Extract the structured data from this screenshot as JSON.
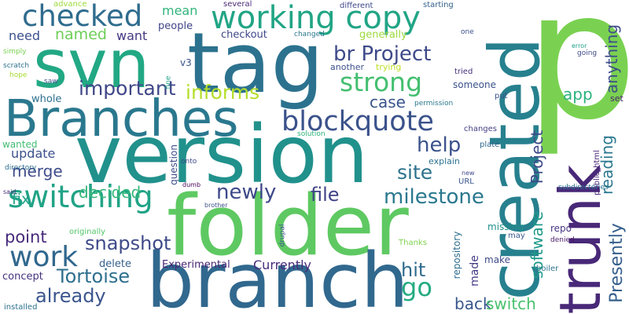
{
  "word_cloud": {
    "words": [
      {
        "text": "p",
        "color": "#7ad151"
      },
      {
        "text": "tag",
        "color": "#2c728e"
      },
      {
        "text": "svn",
        "color": "#22a884"
      },
      {
        "text": "version",
        "color": "#21918c"
      },
      {
        "text": "folder",
        "color": "#5ec962"
      },
      {
        "text": "branch",
        "color": "#31688e"
      },
      {
        "text": "created",
        "color": "#27808e"
      },
      {
        "text": "trunk",
        "color": "#482878"
      },
      {
        "text": "Branches",
        "color": "#2a788e"
      },
      {
        "text": "working copy",
        "color": "#21a585"
      },
      {
        "text": "checked",
        "color": "#2f6c8e"
      },
      {
        "text": "blockquote",
        "color": "#3b528b"
      },
      {
        "text": "strong",
        "color": "#44bf70"
      },
      {
        "text": "br Project",
        "color": "#3e4a89"
      },
      {
        "text": "switching",
        "color": "#20a386"
      },
      {
        "text": "work",
        "color": "#31688e"
      },
      {
        "text": "newly",
        "color": "#3e4989"
      },
      {
        "text": "milestone",
        "color": "#2a788e"
      },
      {
        "text": "important",
        "color": "#3f4788"
      },
      {
        "text": "informs",
        "color": "#b5de2b"
      },
      {
        "text": "help",
        "color": "#3b528b"
      },
      {
        "text": "site",
        "color": "#2c728e"
      },
      {
        "text": "file",
        "color": "#404387"
      },
      {
        "text": "merge",
        "color": "#3e4c8a"
      },
      {
        "text": "fix",
        "color": "#1fa187"
      },
      {
        "text": "decided",
        "color": "#35b779"
      },
      {
        "text": "snapshot",
        "color": "#3e4a89"
      },
      {
        "text": "point",
        "color": "#472a7a"
      },
      {
        "text": "Tortoise",
        "color": "#2e6f8e"
      },
      {
        "text": "already",
        "color": "#3a548c"
      },
      {
        "text": "hit",
        "color": "#2f6b8e"
      },
      {
        "text": "go",
        "color": "#25ab82"
      },
      {
        "text": "Currently",
        "color": "#472c7a"
      },
      {
        "text": "back",
        "color": "#39568c"
      },
      {
        "text": "switch",
        "color": "#4ac16d"
      },
      {
        "text": "software",
        "color": "#1f9a8a"
      },
      {
        "text": "Presently",
        "color": "#355f8d"
      },
      {
        "text": "reading",
        "color": "#2a778e"
      },
      {
        "text": "anything",
        "color": "#3d4e8a"
      },
      {
        "text": "app",
        "color": "#2db27d"
      },
      {
        "text": "Project",
        "color": "#3e4a89"
      },
      {
        "text": "case",
        "color": "#39558c"
      },
      {
        "text": "update",
        "color": "#3b518b"
      },
      {
        "text": "mean",
        "color": "#31b57b"
      },
      {
        "text": "named",
        "color": "#6ece58"
      },
      {
        "text": "need",
        "color": "#3b518b"
      },
      {
        "text": "want",
        "color": "#443983"
      },
      {
        "text": "people",
        "color": "#404688"
      },
      {
        "text": "checkout",
        "color": "#3f4889"
      },
      {
        "text": "generally",
        "color": "#9bd93c"
      },
      {
        "text": "whole",
        "color": "#2d708e"
      },
      {
        "text": "wanted",
        "color": "#40bd72"
      },
      {
        "text": "repository",
        "color": "#2e6d8e"
      },
      {
        "text": "made",
        "color": "#443b84"
      },
      {
        "text": "make",
        "color": "#3e4a89"
      },
      {
        "text": "delete",
        "color": "#34618d"
      },
      {
        "text": "concept",
        "color": "#45337d"
      },
      {
        "text": "Experimental",
        "color": "#482475"
      },
      {
        "text": "repo",
        "color": "#453581"
      },
      {
        "text": "missing",
        "color": "#20928c"
      },
      {
        "text": "question",
        "color": "#3d4d8a"
      },
      {
        "text": "explain",
        "color": "#2c738e"
      },
      {
        "text": "someone",
        "color": "#3b528b"
      },
      {
        "text": "advance",
        "color": "#9fda3a"
      },
      {
        "text": "several",
        "color": "#482979"
      },
      {
        "text": "different",
        "color": "#3e4989"
      },
      {
        "text": "starting",
        "color": "#33638d"
      },
      {
        "text": "changed",
        "color": "#2a768e"
      },
      {
        "text": "one",
        "color": "#3b528b"
      },
      {
        "text": "simply",
        "color": "#7ad151"
      },
      {
        "text": "scratch",
        "color": "#2c718e"
      },
      {
        "text": "hope",
        "color": "#a8db34"
      },
      {
        "text": "saw",
        "color": "#3b528b"
      },
      {
        "text": "v3",
        "color": "#3b528b"
      },
      {
        "text": "fine",
        "color": "#20a486"
      },
      {
        "text": "another",
        "color": "#3c508b"
      },
      {
        "text": "trying",
        "color": "#bddf26"
      },
      {
        "text": "tried",
        "color": "#472f7d"
      },
      {
        "text": "error",
        "color": "#1f9e89"
      },
      {
        "text": "going",
        "color": "#3e4a89"
      },
      {
        "text": "put",
        "color": "#3b528b"
      },
      {
        "text": "permission",
        "color": "#2a788e"
      },
      {
        "text": "set",
        "color": "#481f70"
      },
      {
        "text": "changes",
        "color": "#423f85"
      },
      {
        "text": "solution",
        "color": "#2eb37c"
      },
      {
        "text": "plate",
        "color": "#31678e"
      },
      {
        "text": "directory",
        "color": "#2e6e8e"
      },
      {
        "text": "onto",
        "color": "#3e4a89"
      },
      {
        "text": "new",
        "color": "#3e4a89"
      },
      {
        "text": "URL",
        "color": "#39568c"
      },
      {
        "text": "subdirectories",
        "color": "#2c728e"
      },
      {
        "text": "public_html",
        "color": "#482677"
      },
      {
        "text": "said",
        "color": "#472d7b"
      },
      {
        "text": "dumb",
        "color": "#440154"
      },
      {
        "text": "brother",
        "color": "#3b518b"
      },
      {
        "text": "drupal",
        "color": "#3b528b"
      },
      {
        "text": "originally",
        "color": "#52c569"
      },
      {
        "text": "Thanks",
        "color": "#7fd34e"
      },
      {
        "text": "may",
        "color": "#38598c"
      },
      {
        "text": "denied",
        "color": "#481769"
      },
      {
        "text": "boiler",
        "color": "#2c738e"
      },
      {
        "text": "installed",
        "color": "#2c718e"
      }
    ]
  }
}
